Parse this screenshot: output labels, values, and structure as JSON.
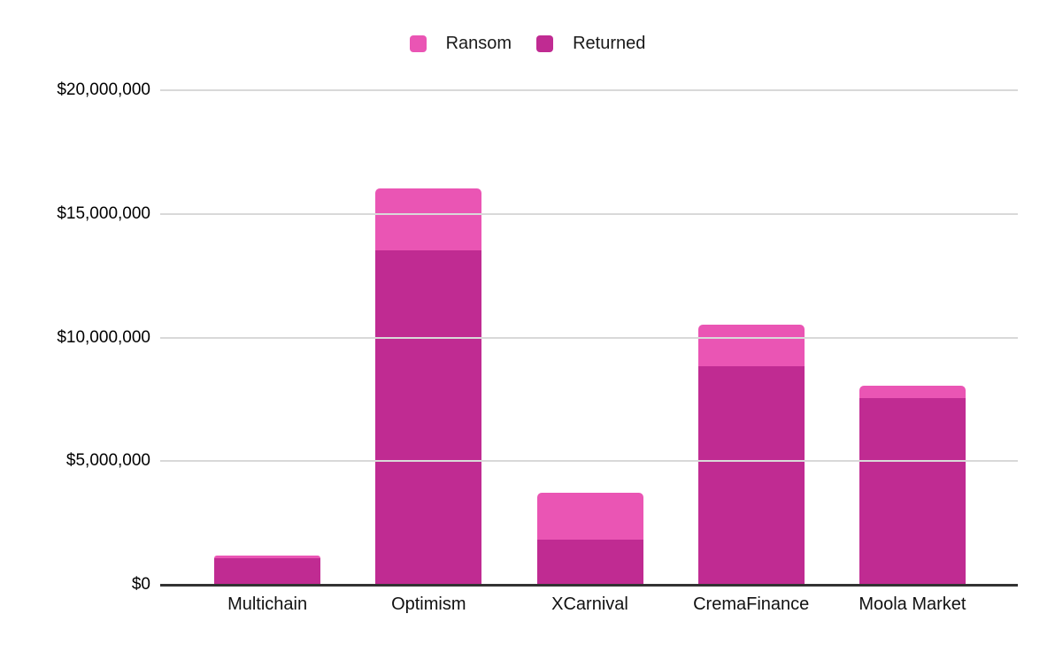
{
  "chart_data": {
    "type": "bar",
    "stacked": true,
    "title": "",
    "xlabel": "",
    "ylabel": "",
    "grid": true,
    "legend_position": "top",
    "categories": [
      "Multichain",
      "Optimism",
      "XCarnival",
      "CremaFinance",
      "Moola Market"
    ],
    "series": [
      {
        "name": "Ransom",
        "color": "#ea55b4",
        "values": [
          100000,
          2500000,
          1900000,
          1700000,
          500000
        ]
      },
      {
        "name": "Returned",
        "color": "#c02b92",
        "values": [
          1050000,
          13500000,
          1800000,
          8800000,
          7500000
        ]
      }
    ],
    "ylim": [
      0,
      20000000
    ],
    "yticks": [
      {
        "value": 0,
        "label": "$0"
      },
      {
        "value": 5000000,
        "label": "$5,000,000"
      },
      {
        "value": 10000000,
        "label": "$10,000,000"
      },
      {
        "value": 15000000,
        "label": "$15,000,000"
      },
      {
        "value": 20000000,
        "label": "$20,000,000"
      }
    ],
    "colors": {
      "gridline": "#d9d9d9",
      "axis_line": "#333333",
      "tick_text": "#000000",
      "legend_text": "#1a1a1a",
      "background": "#ffffff"
    }
  }
}
